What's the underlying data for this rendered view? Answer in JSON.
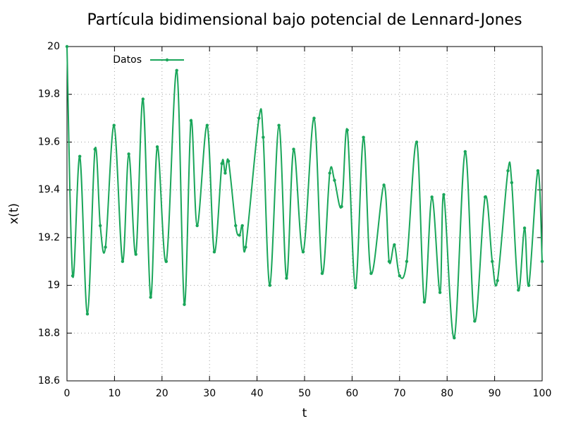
{
  "chart_data": {
    "type": "line",
    "title": "Partícula bidimensional bajo potencial de Lennard-Jones",
    "xlabel": "t",
    "ylabel": "x(t)",
    "x": [
      0,
      1.2,
      2.7,
      4.3,
      5.9,
      7,
      8.1,
      9.9,
      11.7,
      13,
      14.5,
      16,
      17.6,
      19,
      20.9,
      23.1,
      24.7,
      26.1,
      27.4,
      29.5,
      31,
      32.6,
      33.3,
      34,
      35.5,
      36.3,
      36.9,
      37.6,
      40.4,
      41.3,
      42.7,
      44.6,
      46.2,
      47.7,
      49.7,
      52,
      53.7,
      55.3,
      56.3,
      57.8,
      59,
      60.7,
      62.4,
      64,
      66.7,
      67.8,
      68.9,
      70,
      71.5,
      73.6,
      75.2,
      76.8,
      78.5,
      79.3,
      81.5,
      83.8,
      85.8,
      88,
      89.5,
      90.6,
      92.8,
      93.6,
      95,
      96.3,
      97.2,
      99.1,
      100
    ],
    "series": [
      {
        "name": "Datos",
        "color": "#1aa65a",
        "values": [
          20.0,
          19.04,
          19.54,
          18.88,
          19.57,
          19.25,
          19.16,
          19.67,
          19.1,
          19.55,
          19.13,
          19.78,
          18.95,
          19.58,
          19.1,
          19.9,
          18.92,
          19.69,
          19.25,
          19.67,
          19.14,
          19.51,
          19.47,
          19.52,
          19.25,
          19.21,
          19.25,
          19.16,
          19.7,
          19.62,
          19.0,
          19.67,
          19.03,
          19.57,
          19.14,
          19.7,
          19.05,
          19.47,
          19.44,
          19.33,
          19.65,
          18.99,
          19.62,
          19.05,
          19.42,
          19.1,
          19.17,
          19.04,
          19.1,
          19.6,
          18.93,
          19.37,
          18.97,
          19.38,
          18.78,
          19.56,
          18.85,
          19.37,
          19.1,
          19.02,
          19.48,
          19.43,
          18.98,
          19.24,
          19.0,
          19.48,
          19.1
        ]
      }
    ],
    "xlim": [
      0,
      100
    ],
    "xticks": [
      0,
      10,
      20,
      30,
      40,
      50,
      60,
      70,
      80,
      90,
      100
    ],
    "ylim": [
      18.6,
      20
    ],
    "yticks": [
      18.6,
      18.8,
      19,
      19.2,
      19.4,
      19.6,
      19.8,
      20
    ],
    "grid": true,
    "legend": "top-left"
  }
}
